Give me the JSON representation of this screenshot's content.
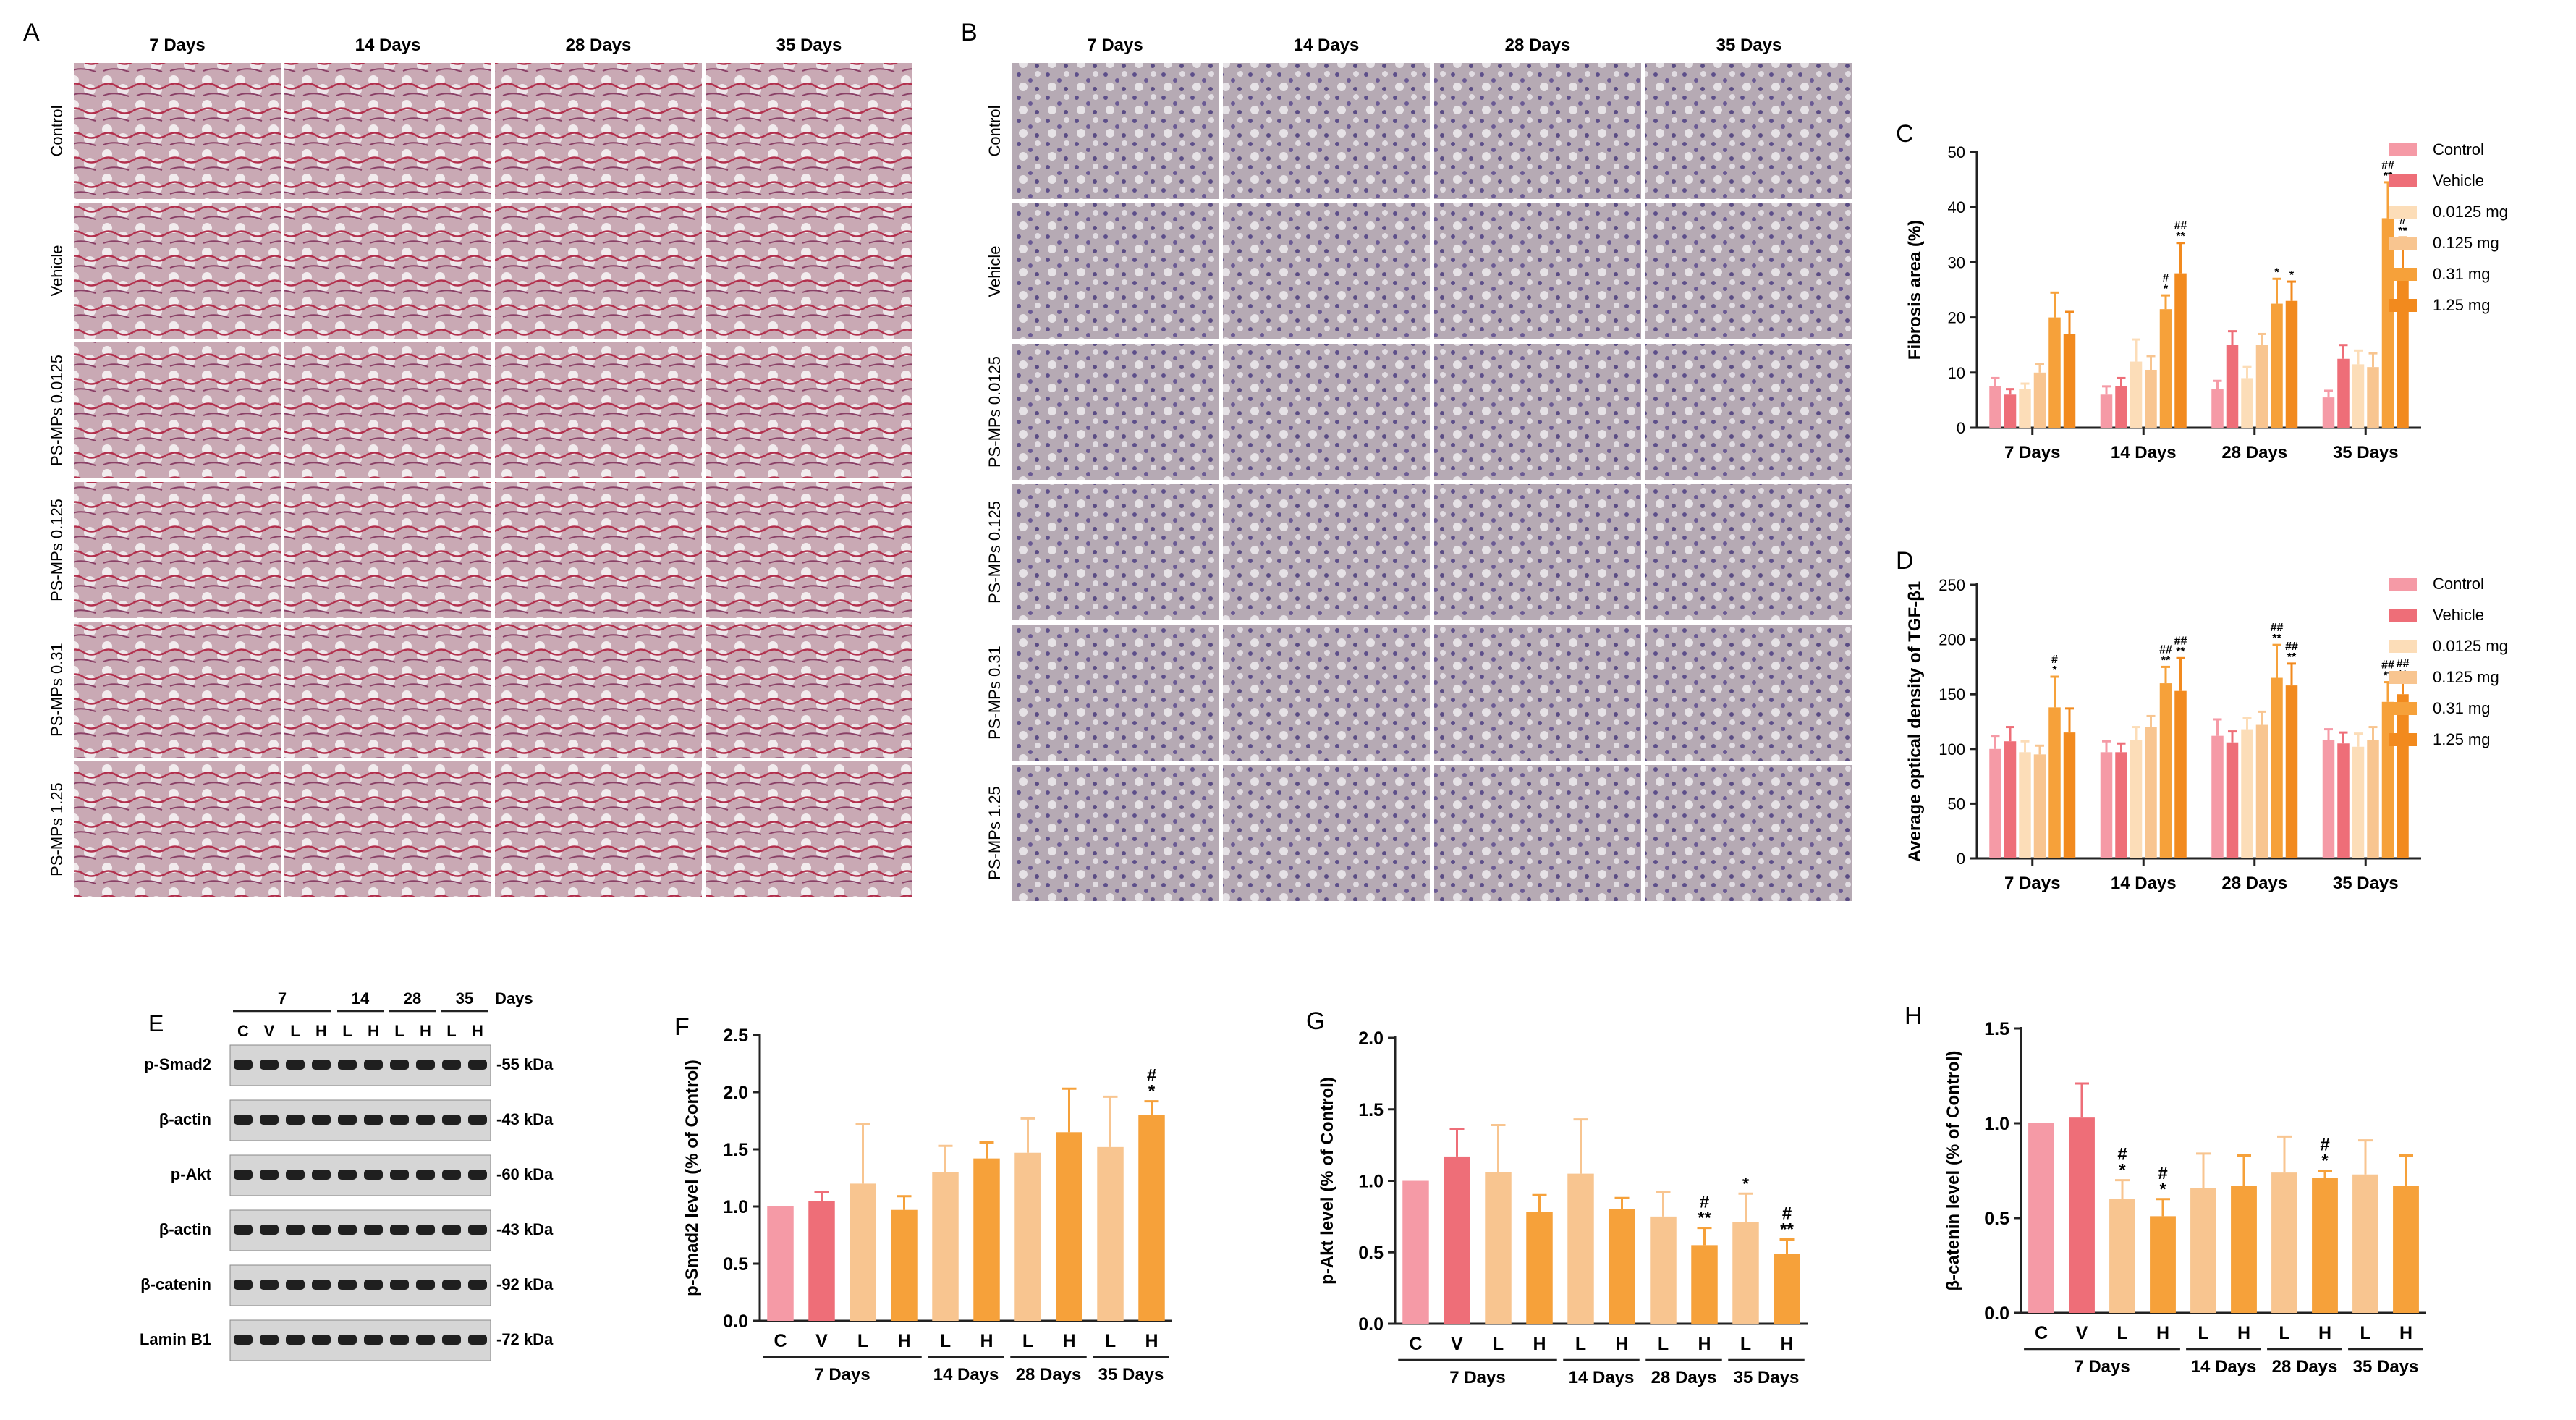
{
  "colors": {
    "control": "#F59AA6",
    "vehicle": "#EE6E78",
    "d0125": "#FCDDB8",
    "d0125b": "#F8C590",
    "d031": "#F6A13A",
    "d125": "#F28A1E",
    "L": "#F8C590",
    "H": "#F6A13A"
  },
  "panelA": {
    "letter": "A",
    "days": [
      "7 Days",
      "14 Days",
      "28 Days",
      "35 Days"
    ],
    "rows": [
      "Control",
      "Vehicle",
      "PS-MPs 0.0125",
      "PS-MPs 0.125",
      "PS-MPs 0.31",
      "PS-MPs 1.25"
    ]
  },
  "panelB": {
    "letter": "B",
    "days": [
      "7 Days",
      "14 Days",
      "28 Days",
      "35 Days"
    ],
    "rows": [
      "Control",
      "Vehicle",
      "PS-MPs 0.0125",
      "PS-MPs 0.125",
      "PS-MPs 0.31",
      "PS-MPs 1.25"
    ]
  },
  "panelE": {
    "letter": "E",
    "groups": [
      "7",
      "14",
      "28",
      "35"
    ],
    "days_label": "Days",
    "lanes": [
      "C",
      "V",
      "L",
      "H",
      "L",
      "H",
      "L",
      "H",
      "L",
      "H"
    ],
    "blots": [
      {
        "name": "p-Smad2",
        "kda": "-55 kDa"
      },
      {
        "name": "β-actin",
        "kda": "-43 kDa"
      },
      {
        "name": "p-Akt",
        "kda": "-60 kDa"
      },
      {
        "name": "β-actin",
        "kda": "-43 kDa"
      },
      {
        "name": "β-catenin",
        "kda": "-92 kDa"
      },
      {
        "name": "Lamin B1",
        "kda": "-72 kDa"
      }
    ]
  },
  "chart_data": [
    {
      "panel": "C",
      "type": "bar",
      "ylabel": "Fibrosis area (%)",
      "ylim": [
        0,
        50
      ],
      "yticks": [
        0,
        10,
        20,
        30,
        40,
        50
      ],
      "categories": [
        "7 Days",
        "14 Days",
        "28 Days",
        "35 Days"
      ],
      "legend": "right",
      "series": [
        {
          "name": "Control",
          "values": [
            7.5,
            6,
            7,
            5.5
          ],
          "errors": [
            1.5,
            1.5,
            1.5,
            1.2
          ]
        },
        {
          "name": "Vehicle",
          "values": [
            6,
            7.5,
            15,
            12.5
          ],
          "errors": [
            1,
            1.5,
            2.5,
            2.5
          ]
        },
        {
          "name": "0.0125 mg",
          "values": [
            7,
            12,
            9,
            11.5
          ],
          "errors": [
            1,
            4,
            2,
            2.5
          ]
        },
        {
          "name": "0.125 mg",
          "values": [
            10,
            10.5,
            15,
            11
          ],
          "errors": [
            1.5,
            2.5,
            2,
            2.5
          ]
        },
        {
          "name": "0.31 mg",
          "values": [
            20,
            21.5,
            22.5,
            38
          ],
          "errors": [
            4.5,
            2.5,
            4.5,
            6.5
          ]
        },
        {
          "name": "1.25 mg",
          "values": [
            17,
            28,
            23,
            28.5
          ],
          "errors": [
            4,
            5.5,
            3.5,
            6
          ]
        }
      ],
      "annotations": [
        {
          "category": "14 Days",
          "series": "0.31 mg",
          "lines": [
            "#",
            "*"
          ]
        },
        {
          "category": "14 Days",
          "series": "1.25 mg",
          "lines": [
            "##",
            "**"
          ]
        },
        {
          "category": "28 Days",
          "series": "0.31 mg",
          "lines": [
            "*"
          ]
        },
        {
          "category": "28 Days",
          "series": "1.25 mg",
          "lines": [
            "*"
          ]
        },
        {
          "category": "35 Days",
          "series": "0.31 mg",
          "lines": [
            "##",
            "**"
          ]
        },
        {
          "category": "35 Days",
          "series": "1.25 mg",
          "lines": [
            "#",
            "**"
          ]
        }
      ]
    },
    {
      "panel": "D",
      "type": "bar",
      "ylabel": "Average optical density of TGF-β1",
      "ylim": [
        0,
        250
      ],
      "yticks": [
        0,
        50,
        100,
        150,
        200,
        250
      ],
      "categories": [
        "7 Days",
        "14 Days",
        "28 Days",
        "35 Days"
      ],
      "legend": "right",
      "series": [
        {
          "name": "Control",
          "values": [
            100,
            97,
            112,
            108
          ],
          "errors": [
            12,
            10,
            15,
            10
          ]
        },
        {
          "name": "Vehicle",
          "values": [
            107,
            97,
            106,
            105
          ],
          "errors": [
            13,
            8,
            10,
            10
          ]
        },
        {
          "name": "0.0125 mg",
          "values": [
            97,
            108,
            118,
            102
          ],
          "errors": [
            10,
            12,
            10,
            12
          ]
        },
        {
          "name": "0.125 mg",
          "values": [
            95,
            120,
            122,
            108
          ],
          "errors": [
            8,
            10,
            12,
            12
          ]
        },
        {
          "name": "0.31 mg",
          "values": [
            138,
            160,
            165,
            143
          ],
          "errors": [
            28,
            15,
            30,
            18
          ]
        },
        {
          "name": "1.25 mg",
          "values": [
            115,
            153,
            158,
            150
          ],
          "errors": [
            22,
            30,
            20,
            12
          ]
        }
      ],
      "annotations": [
        {
          "category": "7 Days",
          "series": "0.31 mg",
          "lines": [
            "#",
            "*"
          ]
        },
        {
          "category": "14 Days",
          "series": "0.31 mg",
          "lines": [
            "##",
            "**"
          ]
        },
        {
          "category": "14 Days",
          "series": "1.25 mg",
          "lines": [
            "##",
            "**"
          ]
        },
        {
          "category": "28 Days",
          "series": "0.31 mg",
          "lines": [
            "##",
            "**"
          ]
        },
        {
          "category": "28 Days",
          "series": "1.25 mg",
          "lines": [
            "##",
            "**"
          ]
        },
        {
          "category": "35 Days",
          "series": "0.31 mg",
          "lines": [
            "##",
            "**"
          ]
        },
        {
          "category": "35 Days",
          "series": "1.25 mg",
          "lines": [
            "##",
            "**"
          ]
        }
      ]
    },
    {
      "panel": "F",
      "type": "bar",
      "ylabel": "p-Smad2 level (% of Control)",
      "ylim": [
        0,
        2.5
      ],
      "yticks": [
        "0.0",
        "0.5",
        "1.0",
        "1.5",
        "2.0",
        "2.5"
      ],
      "categories": [
        "C",
        "V",
        "L",
        "H",
        "L",
        "H",
        "L",
        "H",
        "L",
        "H"
      ],
      "values": [
        1.0,
        1.05,
        1.2,
        0.97,
        1.3,
        1.42,
        1.47,
        1.65,
        1.52,
        1.8
      ],
      "errors": [
        0,
        0.08,
        0.52,
        0.12,
        0.23,
        0.14,
        0.3,
        0.38,
        0.44,
        0.12
      ],
      "groups": [
        {
          "label": "7 Days",
          "from": 0,
          "to": 3
        },
        {
          "label": "14 Days",
          "from": 4,
          "to": 5
        },
        {
          "label": "28 Days",
          "from": 6,
          "to": 7
        },
        {
          "label": "35 Days",
          "from": 8,
          "to": 9
        }
      ],
      "annotations": [
        {
          "index": 9,
          "lines": [
            "#",
            "*"
          ]
        }
      ]
    },
    {
      "panel": "G",
      "type": "bar",
      "ylabel": "p-Akt level (% of Control)",
      "ylim": [
        0,
        2.0
      ],
      "yticks": [
        "0.0",
        "0.5",
        "1.0",
        "1.5",
        "2.0"
      ],
      "categories": [
        "C",
        "V",
        "L",
        "H",
        "L",
        "H",
        "L",
        "H",
        "L",
        "H"
      ],
      "values": [
        1.0,
        1.17,
        1.06,
        0.78,
        1.05,
        0.8,
        0.75,
        0.55,
        0.71,
        0.49
      ],
      "errors": [
        0,
        0.19,
        0.33,
        0.12,
        0.38,
        0.08,
        0.17,
        0.12,
        0.2,
        0.1
      ],
      "groups": [
        {
          "label": "7 Days",
          "from": 0,
          "to": 3
        },
        {
          "label": "14 Days",
          "from": 4,
          "to": 5
        },
        {
          "label": "28 Days",
          "from": 6,
          "to": 7
        },
        {
          "label": "35 Days",
          "from": 8,
          "to": 9
        }
      ],
      "annotations": [
        {
          "index": 7,
          "lines": [
            "#",
            "**"
          ]
        },
        {
          "index": 8,
          "lines": [
            "*"
          ]
        },
        {
          "index": 9,
          "lines": [
            "#",
            "**"
          ]
        }
      ]
    },
    {
      "panel": "H",
      "type": "bar",
      "ylabel": "β-catenin level (% of Control)",
      "ylim": [
        0,
        1.5
      ],
      "yticks": [
        "0.0",
        "0.5",
        "1.0",
        "1.5"
      ],
      "categories": [
        "C",
        "V",
        "L",
        "H",
        "L",
        "H",
        "L",
        "H",
        "L",
        "H"
      ],
      "values": [
        1.0,
        1.03,
        0.6,
        0.51,
        0.66,
        0.67,
        0.74,
        0.71,
        0.73,
        0.67
      ],
      "errors": [
        0,
        0.18,
        0.1,
        0.09,
        0.18,
        0.16,
        0.19,
        0.04,
        0.18,
        0.16
      ],
      "groups": [
        {
          "label": "7 Days",
          "from": 0,
          "to": 3
        },
        {
          "label": "14 Days",
          "from": 4,
          "to": 5
        },
        {
          "label": "28 Days",
          "from": 6,
          "to": 7
        },
        {
          "label": "35 Days",
          "from": 8,
          "to": 9
        }
      ],
      "annotations": [
        {
          "index": 2,
          "lines": [
            "#",
            "*"
          ]
        },
        {
          "index": 3,
          "lines": [
            "#",
            "*"
          ]
        },
        {
          "index": 7,
          "lines": [
            "#",
            "*"
          ]
        }
      ]
    }
  ]
}
